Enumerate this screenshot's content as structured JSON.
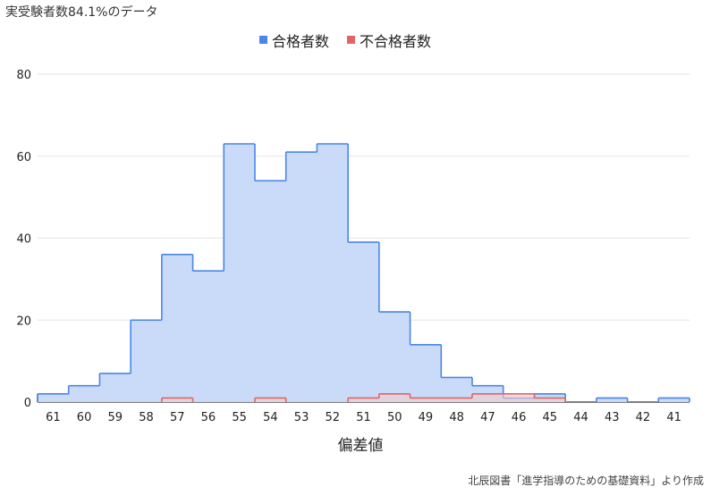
{
  "title": "実受験者数84.1%のデータ",
  "source": "北辰図書「進学指導のための基礎資料」より作成",
  "colors": {
    "pass": "#4a86e8",
    "pass_fill": "#c6d9f8",
    "fail": "#e06666",
    "fail_fill": "#f4cccc",
    "grid": "#e6e6e6"
  },
  "chart_data": {
    "type": "area",
    "xlabel": "偏差値",
    "ylabel": "",
    "ylim": [
      0,
      80
    ],
    "yticks": [
      0,
      20,
      40,
      60,
      80
    ],
    "grid": true,
    "legend_position": "top",
    "categories": [
      "61",
      "60",
      "59",
      "58",
      "57",
      "56",
      "55",
      "54",
      "53",
      "52",
      "51",
      "50",
      "49",
      "48",
      "47",
      "46",
      "45",
      "44",
      "43",
      "42",
      "41"
    ],
    "series": [
      {
        "name": "合格者数",
        "values": [
          2,
          4,
          7,
          20,
          36,
          32,
          63,
          54,
          61,
          63,
          39,
          22,
          14,
          6,
          4,
          1,
          2,
          0,
          1,
          0,
          1
        ]
      },
      {
        "name": "不合格者数",
        "values": [
          0,
          0,
          0,
          0,
          1,
          0,
          0,
          1,
          0,
          0,
          1,
          2,
          1,
          1,
          2,
          2,
          1,
          0,
          0,
          0,
          0
        ]
      }
    ]
  }
}
